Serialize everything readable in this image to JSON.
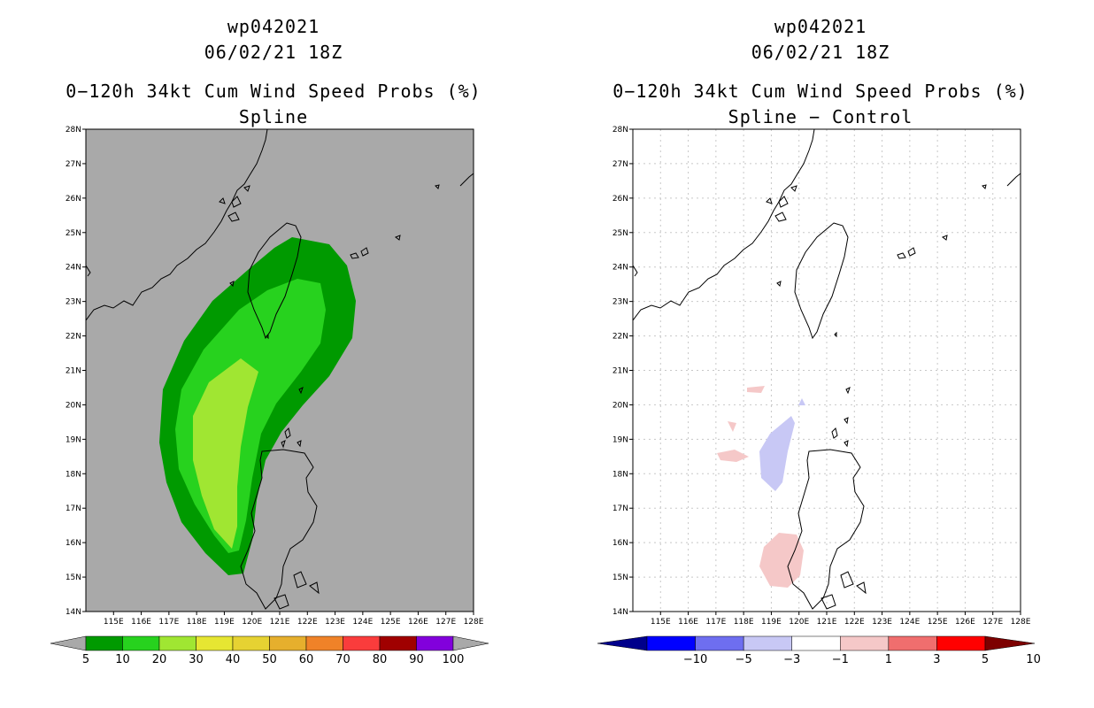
{
  "colors": {
    "land_bg": "#a9a9a9",
    "prob_5": "#009a00",
    "prob_10": "#27d21e",
    "prob_20": "#a0e632",
    "diff_neg": "#c8c8f5",
    "diff_pos": "#f5c8c8"
  },
  "left": {
    "header": "wp042021",
    "datetime": "06/02/21 18Z",
    "title": "0−120h 34kt Cum Wind Speed Probs (%)",
    "subtitle": "Spline",
    "lat_labels": [
      "28N",
      "27N",
      "26N",
      "25N",
      "24N",
      "23N",
      "22N",
      "21N",
      "20N",
      "19N",
      "18N",
      "17N",
      "16N",
      "15N",
      "14N"
    ],
    "lon_labels": [
      "115E",
      "116E",
      "117E",
      "118E",
      "119E",
      "120E",
      "121E",
      "122E",
      "123E",
      "124E",
      "125E",
      "126E",
      "127E",
      "128E"
    ],
    "colorbar": {
      "labels": [
        "5",
        "10",
        "20",
        "30",
        "40",
        "50",
        "60",
        "70",
        "80",
        "90",
        "100"
      ],
      "colors": [
        "#009a00",
        "#27d21e",
        "#a0e632",
        "#e6e632",
        "#e6d232",
        "#e6af2d",
        "#f08228",
        "#fa3c3c",
        "#a00000",
        "#8200dc"
      ],
      "end_low": "#a9a9a9",
      "end_high": "#a9a9a9"
    }
  },
  "right": {
    "header": "wp042021",
    "datetime": "06/02/21 18Z",
    "title": "0−120h 34kt Cum Wind Speed Probs (%)",
    "subtitle": "Spline − Control",
    "lat_labels": [
      "28N",
      "27N",
      "26N",
      "25N",
      "24N",
      "23N",
      "22N",
      "21N",
      "20N",
      "19N",
      "18N",
      "17N",
      "16N",
      "15N",
      "14N"
    ],
    "lon_labels": [
      "115E",
      "116E",
      "117E",
      "118E",
      "119E",
      "120E",
      "121E",
      "122E",
      "123E",
      "124E",
      "125E",
      "126E",
      "127E",
      "128E"
    ],
    "colorbar": {
      "labels": [
        "−10",
        "−5",
        "−3",
        "−1",
        "1",
        "3",
        "5",
        "10"
      ],
      "colors": [
        "#0000ff",
        "#6e6ef0",
        "#c8c8f5",
        "#ffffff",
        "#f5c8c8",
        "#f06e6e",
        "#ff0000"
      ],
      "end_low": "#00008b",
      "end_high": "#7d0000"
    }
  }
}
